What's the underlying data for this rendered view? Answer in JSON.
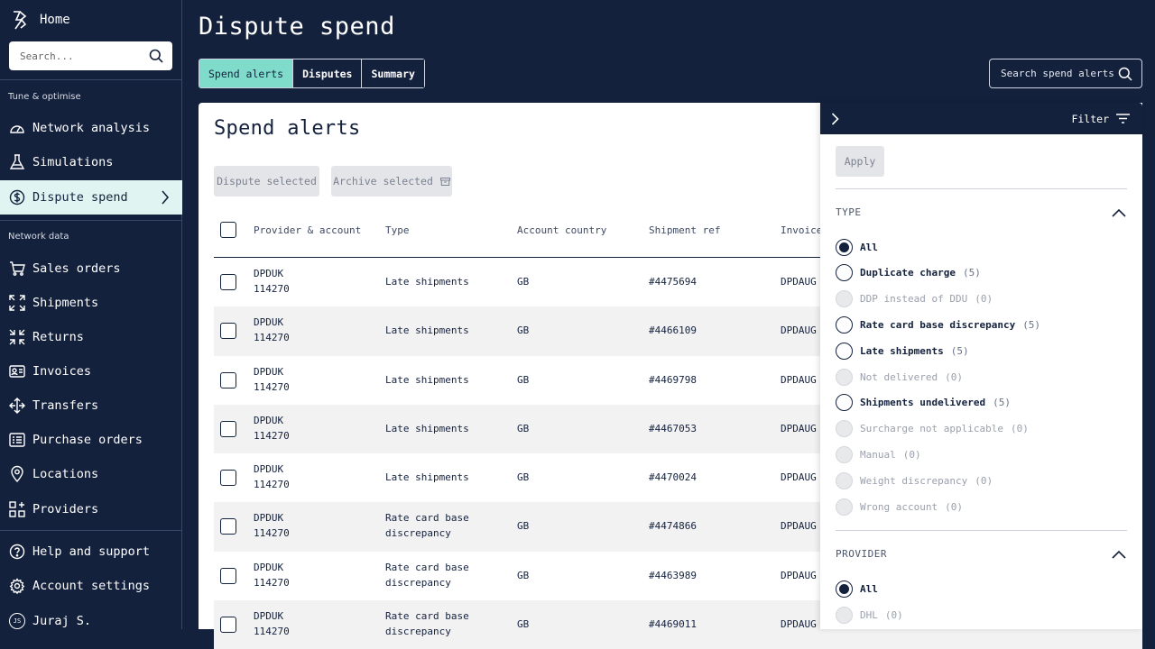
{
  "sidebar": {
    "home_label": "Home",
    "search_placeholder": "Search...",
    "section_tune": "Tune & optimise",
    "section_network": "Network data",
    "items": [
      {
        "label": "Network analysis"
      },
      {
        "label": "Simulations"
      },
      {
        "label": "Dispute spend"
      },
      {
        "label": "Sales orders"
      },
      {
        "label": "Shipments"
      },
      {
        "label": "Returns"
      },
      {
        "label": "Invoices"
      },
      {
        "label": "Transfers"
      },
      {
        "label": "Purchase orders"
      },
      {
        "label": "Locations"
      },
      {
        "label": "Providers"
      },
      {
        "label": "Help and support"
      },
      {
        "label": "Account settings"
      }
    ],
    "user": {
      "initials": "JS",
      "name": "Juraj S."
    }
  },
  "header": {
    "title": "Dispute spend",
    "tabs": [
      {
        "label": "Spend alerts"
      },
      {
        "label": "Disputes"
      },
      {
        "label": "Summary"
      }
    ],
    "search_placeholder": "Search spend alerts"
  },
  "card": {
    "title": "Spend alerts",
    "dispute_selected": "Dispute selected",
    "archive_selected": "Archive selected",
    "columns": [
      "Provider & account",
      "Type",
      "Account country",
      "Shipment ref",
      "Invoice"
    ],
    "rows": [
      {
        "provider": "DPDUK",
        "account": "114270",
        "type1": "Late shipments",
        "type2": "",
        "country": "GB",
        "ref": "#4475694",
        "invoice": "DPDAUG"
      },
      {
        "provider": "DPDUK",
        "account": "114270",
        "type1": "Late shipments",
        "type2": "",
        "country": "GB",
        "ref": "#4466109",
        "invoice": "DPDAUG"
      },
      {
        "provider": "DPDUK",
        "account": "114270",
        "type1": "Late shipments",
        "type2": "",
        "country": "GB",
        "ref": "#4469798",
        "invoice": "DPDAUG"
      },
      {
        "provider": "DPDUK",
        "account": "114270",
        "type1": "Late shipments",
        "type2": "",
        "country": "GB",
        "ref": "#4467053",
        "invoice": "DPDAUG"
      },
      {
        "provider": "DPDUK",
        "account": "114270",
        "type1": "Late shipments",
        "type2": "",
        "country": "GB",
        "ref": "#4470024",
        "invoice": "DPDAUG"
      },
      {
        "provider": "DPDUK",
        "account": "114270",
        "type1": "Rate card base",
        "type2": "discrepancy",
        "country": "GB",
        "ref": "#4474866",
        "invoice": "DPDAUG"
      },
      {
        "provider": "DPDUK",
        "account": "114270",
        "type1": "Rate card base",
        "type2": "discrepancy",
        "country": "GB",
        "ref": "#4463989",
        "invoice": "DPDAUG"
      },
      {
        "provider": "DPDUK",
        "account": "114270",
        "type1": "Rate card base",
        "type2": "discrepancy",
        "country": "GB",
        "ref": "#4469011",
        "invoice": "DPDAUG"
      }
    ]
  },
  "filter": {
    "title": "Filter",
    "apply_label": "Apply",
    "type_section": "TYPE",
    "type_options": [
      {
        "label": "All",
        "count": "",
        "checked": true,
        "disabled": false
      },
      {
        "label": "Duplicate charge",
        "count": "(5)",
        "checked": false,
        "disabled": false
      },
      {
        "label": "DDP instead of DDU",
        "count": "(0)",
        "checked": false,
        "disabled": true
      },
      {
        "label": "Rate card base discrepancy",
        "count": "(5)",
        "checked": false,
        "disabled": false
      },
      {
        "label": "Late shipments",
        "count": "(5)",
        "checked": false,
        "disabled": false
      },
      {
        "label": "Not delivered",
        "count": "(0)",
        "checked": false,
        "disabled": true
      },
      {
        "label": "Shipments undelivered",
        "count": "(5)",
        "checked": false,
        "disabled": false
      },
      {
        "label": "Surcharge not applicable",
        "count": "(0)",
        "checked": false,
        "disabled": true
      },
      {
        "label": "Manual",
        "count": "(0)",
        "checked": false,
        "disabled": true
      },
      {
        "label": "Weight discrepancy",
        "count": "(0)",
        "checked": false,
        "disabled": true
      },
      {
        "label": "Wrong account",
        "count": "(0)",
        "checked": false,
        "disabled": true
      }
    ],
    "provider_section": "PROVIDER",
    "provider_options": [
      {
        "label": "All",
        "count": "",
        "checked": true,
        "disabled": false
      },
      {
        "label": "DHL",
        "count": "(0)",
        "checked": false,
        "disabled": true
      }
    ]
  }
}
